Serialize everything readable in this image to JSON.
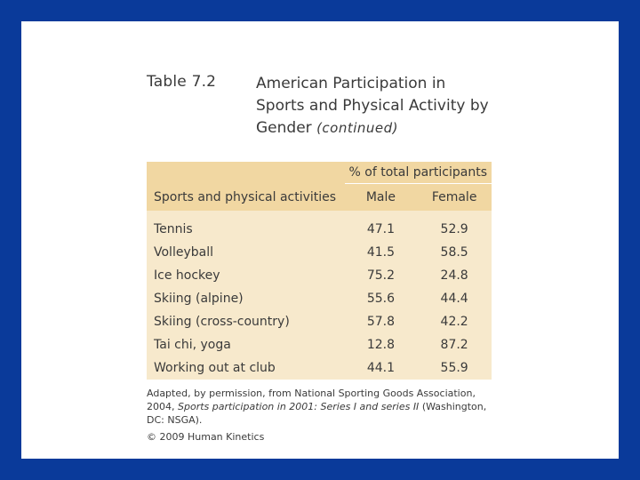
{
  "table": {
    "number": "Table 7.2",
    "title_main": "American Participation in Sports and Physical Activity by Gender",
    "title_cont": "(continued)",
    "header_span": "% of total participants",
    "col_activity": "Sports and physical activities",
    "col_male": "Male",
    "col_female": "Female",
    "rows": [
      {
        "activity": "Tennis",
        "male": "47.1",
        "female": "52.9"
      },
      {
        "activity": "Volleyball",
        "male": "41.5",
        "female": "58.5"
      },
      {
        "activity": "Ice hockey",
        "male": "75.2",
        "female": "24.8"
      },
      {
        "activity": "Skiing (alpine)",
        "male": "55.6",
        "female": "44.4"
      },
      {
        "activity": "Skiing (cross-country)",
        "male": "57.8",
        "female": "42.2"
      },
      {
        "activity": "Tai chi, yoga",
        "male": "12.8",
        "female": "87.2"
      },
      {
        "activity": "Working out at club",
        "male": "44.1",
        "female": "55.9"
      }
    ]
  },
  "notes": {
    "source_prefix": "Adapted, by permission, from National Sporting Goods Association, 2004,",
    "source_title": "Sports participation in 2001: Series I and series II",
    "source_suffix": "(Washington, DC: NSGA).",
    "copyright": "© 2009 Human Kinetics"
  },
  "colors": {
    "slide_border": "#0a3a9a",
    "header_fill": "#f1d7a2",
    "body_fill": "#f7e9cc"
  }
}
